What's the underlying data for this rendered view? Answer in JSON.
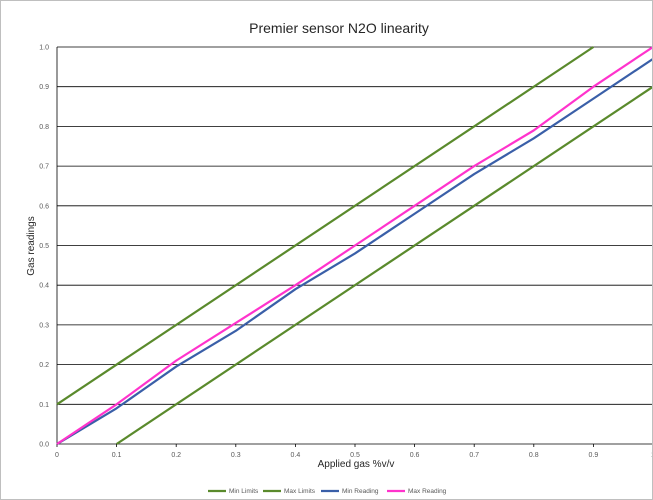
{
  "chart_data": {
    "type": "line",
    "title": "Premier sensor N2O linearity",
    "xlabel": "Applied gas %v/v",
    "ylabel": "Gas readings",
    "xlim": [
      0,
      1
    ],
    "ylim": [
      0,
      1
    ],
    "x_ticks": [
      "0",
      "0.1",
      "0.2",
      "0.3",
      "0.4",
      "0.5",
      "0.6",
      "0.7",
      "0.8",
      "0.9",
      "1"
    ],
    "y_ticks": [
      "0.0",
      "0.1",
      "0.2",
      "0.3",
      "0.4",
      "0.5",
      "0.6",
      "0.7",
      "0.8",
      "0.9",
      "1.0"
    ],
    "grid": "horizontal",
    "legend_position": "bottom",
    "series": [
      {
        "name": "Min Limits",
        "color": "#5a8a2c",
        "points": [
          [
            0.1,
            0.0
          ],
          [
            1.0,
            0.9
          ]
        ]
      },
      {
        "name": "Max Limits",
        "color": "#5a8a2c",
        "points": [
          [
            0.0,
            0.1
          ],
          [
            0.9,
            1.0
          ]
        ]
      },
      {
        "name": "Min Reading",
        "color": "#3a5fa8",
        "points": [
          [
            0.0,
            0.0
          ],
          [
            0.1,
            0.09
          ],
          [
            0.2,
            0.195
          ],
          [
            0.3,
            0.285
          ],
          [
            0.4,
            0.39
          ],
          [
            0.5,
            0.48
          ],
          [
            0.6,
            0.58
          ],
          [
            0.7,
            0.68
          ],
          [
            0.8,
            0.77
          ],
          [
            0.9,
            0.87
          ],
          [
            1.0,
            0.97
          ]
        ]
      },
      {
        "name": "Max Reading",
        "color": "#ff33cc",
        "points": [
          [
            0.0,
            0.0
          ],
          [
            0.1,
            0.1
          ],
          [
            0.2,
            0.21
          ],
          [
            0.3,
            0.305
          ],
          [
            0.4,
            0.4
          ],
          [
            0.5,
            0.5
          ],
          [
            0.6,
            0.6
          ],
          [
            0.7,
            0.7
          ],
          [
            0.8,
            0.79
          ],
          [
            0.9,
            0.9
          ],
          [
            1.0,
            1.0
          ]
        ]
      }
    ]
  }
}
